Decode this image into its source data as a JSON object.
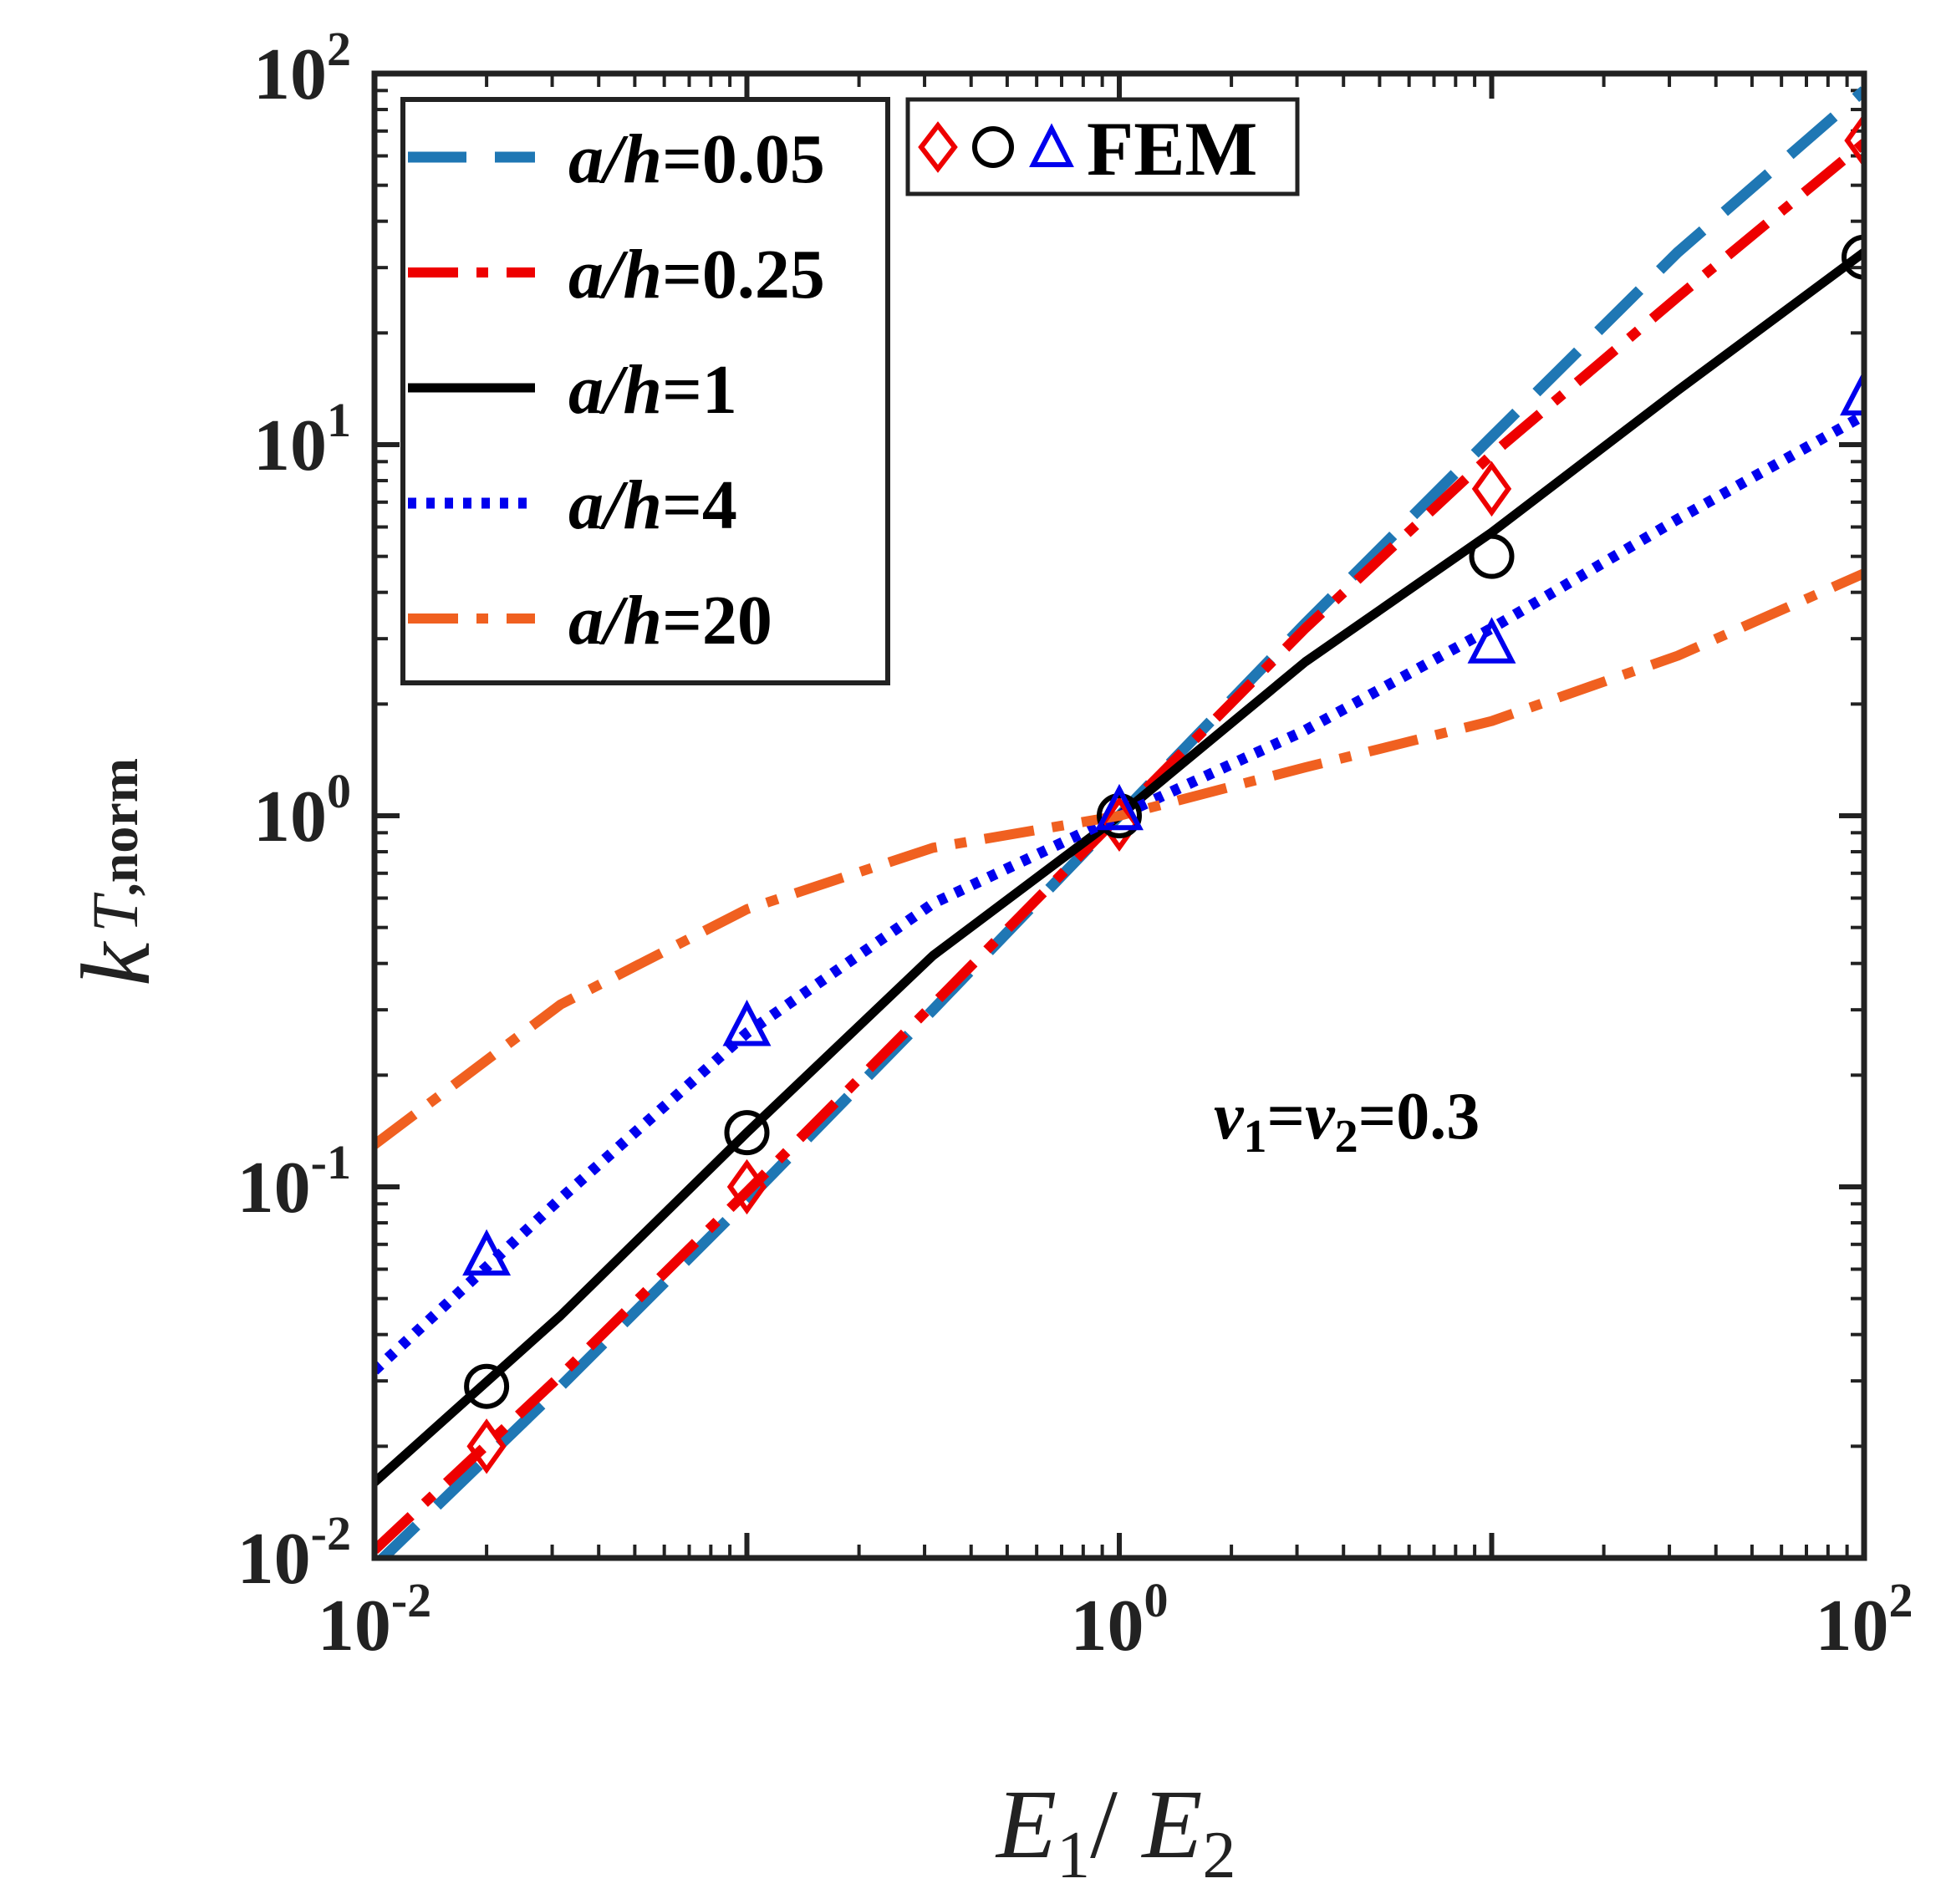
{
  "chart_data": {
    "type": "line",
    "xscale": "log",
    "yscale": "log",
    "xlim": [
      0.01,
      100
    ],
    "ylim": [
      0.01,
      100
    ],
    "xlabel": "E1/ E2",
    "xlabel_parts": {
      "e": "E",
      "sub1": "1",
      "slash": "/",
      "sub2": "2"
    },
    "ylabel": "k T,norm",
    "ylabel_parts": {
      "k": "k",
      "sub": "T",
      "subsub": ",norm"
    },
    "xticks": [
      {
        "value": 0.01,
        "base": "10",
        "exp": "-2"
      },
      {
        "value": 1,
        "base": "10",
        "exp": "0"
      },
      {
        "value": 100,
        "base": "10",
        "exp": "2"
      }
    ],
    "yticks": [
      {
        "value": 0.01,
        "base": "10",
        "exp": "-2"
      },
      {
        "value": 0.1,
        "base": "10",
        "exp": "-1"
      },
      {
        "value": 1,
        "base": "10",
        "exp": "0"
      },
      {
        "value": 10,
        "base": "10",
        "exp": "1"
      },
      {
        "value": 100,
        "base": "10",
        "exp": "2"
      }
    ],
    "series": [
      {
        "name": "a/h=0.05",
        "label_ratio": "a/h",
        "label_value": "=0.05",
        "color": "#1f77b4",
        "style": "dashed",
        "x": [
          0.01,
          0.0316,
          0.1,
          0.316,
          1,
          3.16,
          10,
          31.6,
          100
        ],
        "y": [
          0.0095,
          0.029,
          0.092,
          0.3,
          1.0,
          3.3,
          10.5,
          33,
          90
        ]
      },
      {
        "name": "a/h=0.25",
        "label_ratio": "a/h",
        "label_value": "=0.25",
        "color": "#ee0000",
        "style": "dashdot",
        "x": [
          0.01,
          0.0316,
          0.1,
          0.316,
          1,
          3.16,
          10,
          31.6,
          100
        ],
        "y": [
          0.0105,
          0.031,
          0.097,
          0.31,
          1.0,
          3.2,
          9.4,
          25,
          65
        ]
      },
      {
        "name": "a/h=1",
        "label_ratio": "a/h",
        "label_value": "=1",
        "color": "#000000",
        "style": "solid",
        "x": [
          0.01,
          0.0316,
          0.1,
          0.316,
          1,
          3.16,
          10,
          31.6,
          100
        ],
        "y": [
          0.016,
          0.045,
          0.14,
          0.42,
          1.0,
          2.6,
          5.8,
          14,
          33
        ]
      },
      {
        "name": "a/h=4",
        "label_ratio": "a/h",
        "label_value": "=4",
        "color": "#0000ee",
        "style": "dotted",
        "x": [
          0.01,
          0.0316,
          0.1,
          0.316,
          1,
          3.16,
          10,
          31.6,
          100
        ],
        "y": [
          0.032,
          0.093,
          0.26,
          0.58,
          1.0,
          1.7,
          3.2,
          6.3,
          12
        ]
      },
      {
        "name": "a/h=20",
        "label_ratio": "a/h",
        "label_value": "=20",
        "color": "#f06020",
        "style": "dashdot",
        "x": [
          0.01,
          0.0316,
          0.1,
          0.316,
          1,
          3.16,
          10,
          31.6,
          100
        ],
        "y": [
          0.13,
          0.31,
          0.56,
          0.82,
          1.0,
          1.35,
          1.8,
          2.7,
          4.5
        ]
      }
    ],
    "fem_markers": [
      {
        "series": "a/h=0.25",
        "marker": "diamond",
        "color": "#ee0000",
        "x": [
          0.02,
          0.1,
          1,
          10,
          100
        ],
        "y": [
          0.02,
          0.1,
          0.95,
          7.6,
          66
        ]
      },
      {
        "series": "a/h=1",
        "marker": "circle",
        "color": "#000000",
        "x": [
          0.02,
          0.1,
          1,
          10,
          100
        ],
        "y": [
          0.029,
          0.14,
          1.0,
          5.0,
          32
        ]
      },
      {
        "series": "a/h=4",
        "marker": "triangle",
        "color": "#0000ee",
        "x": [
          0.02,
          0.1,
          1,
          10,
          100
        ],
        "y": [
          0.065,
          0.27,
          1.03,
          2.9,
          13.5
        ]
      }
    ],
    "fem_legend": {
      "label": "FEM"
    },
    "annotation": {
      "nu": "ν",
      "sub1": "1",
      "eq1": "=",
      "sub2": "2",
      "eq2": "=0.3",
      "text": "ν1=ν2=0.3"
    },
    "legend_position": "top-left"
  }
}
